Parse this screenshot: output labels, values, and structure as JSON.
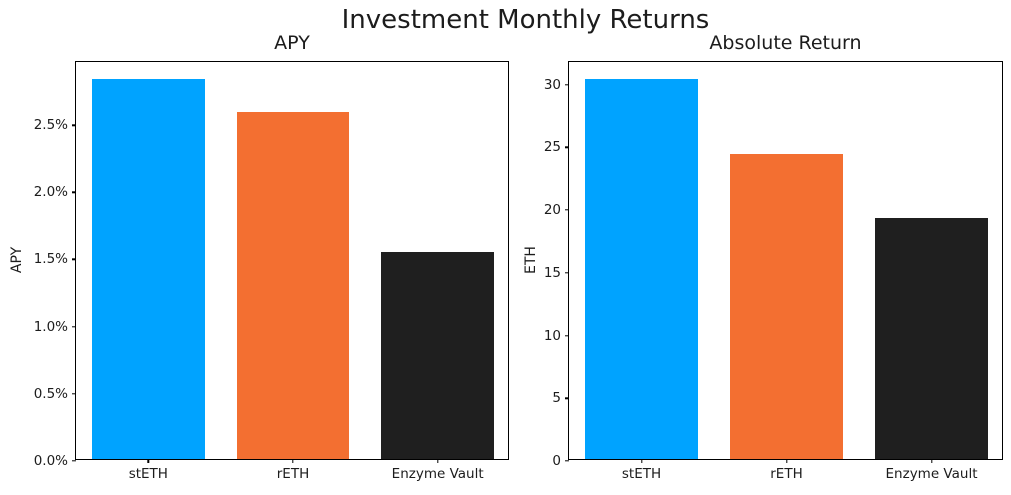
{
  "figure": {
    "title": "Investment Monthly Returns"
  },
  "chart_data": [
    {
      "type": "bar",
      "title": "APY",
      "xlabel": "",
      "ylabel": "APY",
      "categories": [
        "stETH",
        "rETH",
        "Enzyme Vault"
      ],
      "values": [
        2.83,
        2.58,
        1.54
      ],
      "unit": "%",
      "ylim": [
        0,
        2.97
      ],
      "yticks": [
        {
          "value": 0.0,
          "label": "0.0%"
        },
        {
          "value": 0.5,
          "label": "0.5%"
        },
        {
          "value": 1.0,
          "label": "1.0%"
        },
        {
          "value": 1.5,
          "label": "1.5%"
        },
        {
          "value": 2.0,
          "label": "2.0%"
        },
        {
          "value": 2.5,
          "label": "2.5%"
        }
      ],
      "colors": [
        "#00A3FF",
        "#F36F31",
        "#1F1F1F"
      ],
      "bar_width_frac": 0.78,
      "grid": false,
      "legend": null
    },
    {
      "type": "bar",
      "title": "Absolute Return",
      "xlabel": "",
      "ylabel": "ETH",
      "categories": [
        "stETH",
        "rETH",
        "Enzyme Vault"
      ],
      "values": [
        30.3,
        24.3,
        19.2
      ],
      "unit": "ETH",
      "ylim": [
        0,
        31.8
      ],
      "yticks": [
        {
          "value": 0,
          "label": "0"
        },
        {
          "value": 5,
          "label": "5"
        },
        {
          "value": 10,
          "label": "10"
        },
        {
          "value": 15,
          "label": "15"
        },
        {
          "value": 20,
          "label": "20"
        },
        {
          "value": 25,
          "label": "25"
        },
        {
          "value": 30,
          "label": "30"
        }
      ],
      "colors": [
        "#00A3FF",
        "#F36F31",
        "#1F1F1F"
      ],
      "bar_width_frac": 0.78,
      "grid": false,
      "legend": null
    }
  ]
}
